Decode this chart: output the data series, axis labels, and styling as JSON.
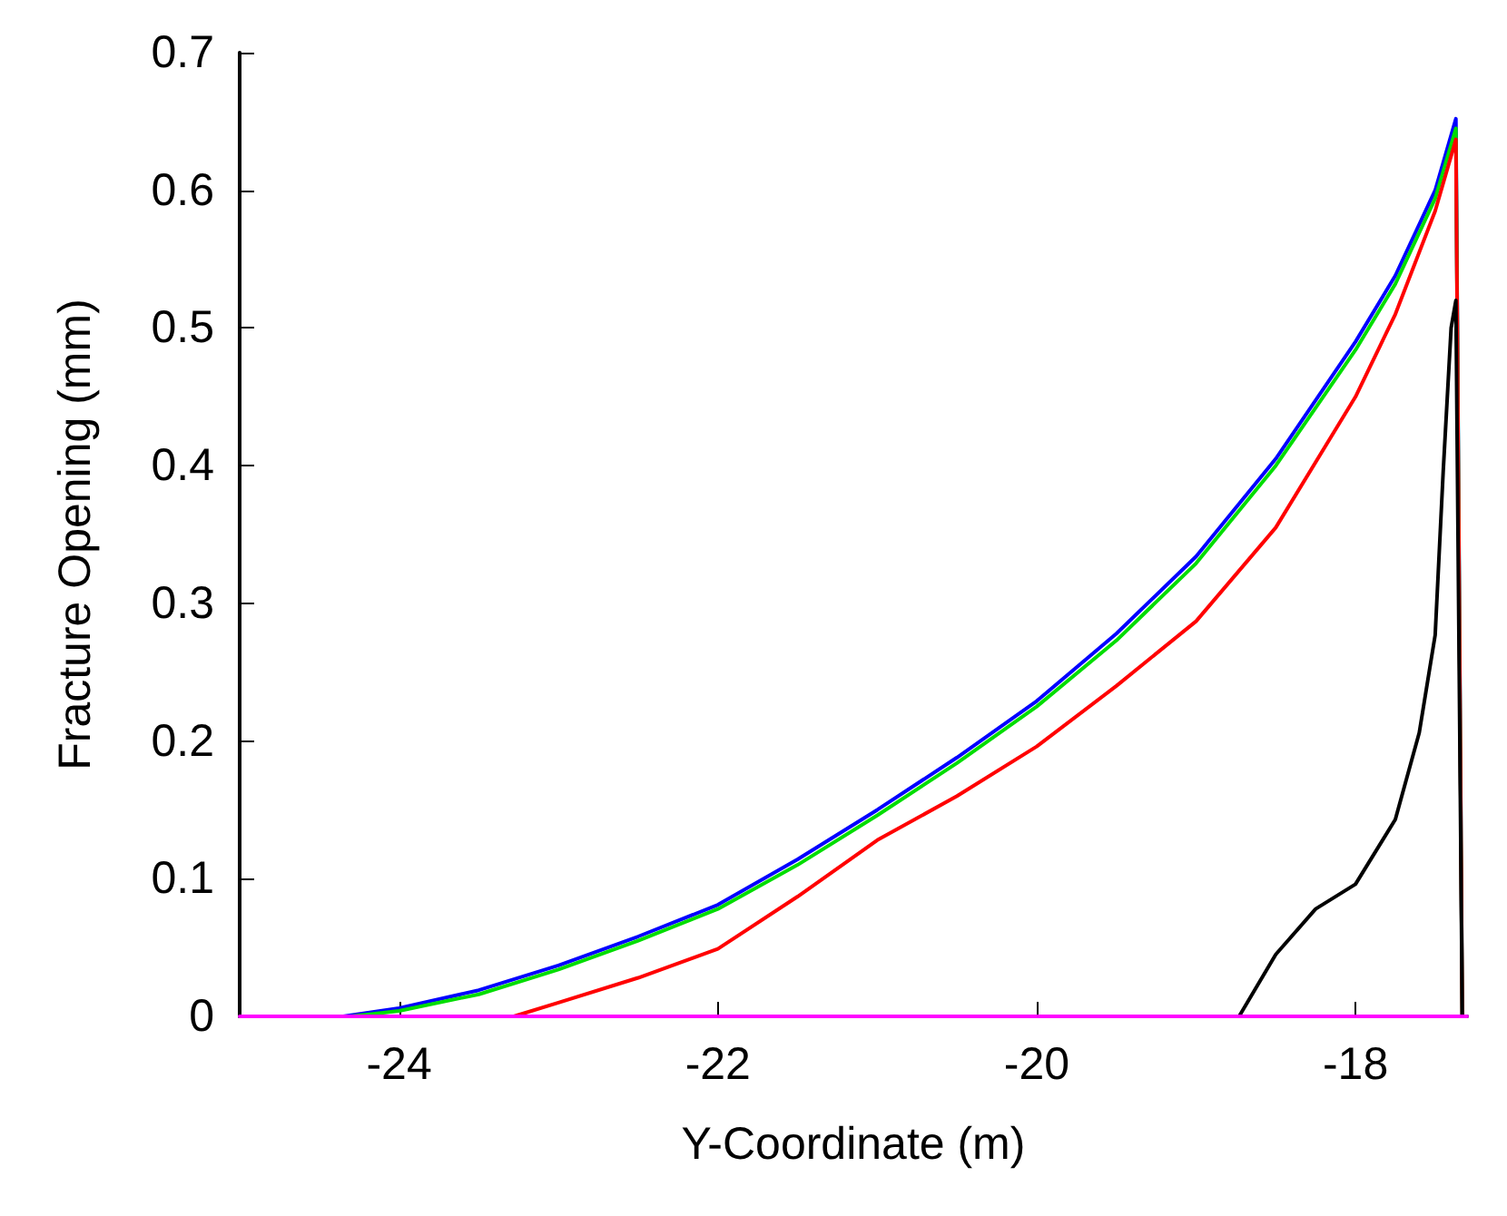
{
  "chart_data": {
    "type": "line",
    "xlabel": "Y-Coordinate (m)",
    "ylabel": "Fracture Opening (mm)",
    "xlim": [
      -25,
      -17.3
    ],
    "xticks": [
      -24,
      -22,
      -20,
      -18
    ],
    "ylim": [
      0,
      0.7
    ],
    "yticks": [
      0,
      0.1,
      0.2,
      0.3,
      0.4,
      0.5,
      0.6,
      0.7
    ],
    "grid": false,
    "marker": "none",
    "line_style": "solid",
    "series": [
      {
        "color": "#0000ff",
        "x": [
          -24.35,
          -24,
          -23.5,
          -23,
          -22.5,
          -22,
          -21.5,
          -21,
          -20.5,
          -20,
          -19.5,
          -19,
          -18.5,
          -18,
          -17.75,
          -17.5,
          -17.37,
          -17.33
        ],
        "values": [
          0,
          0.006,
          0.019,
          0.037,
          0.058,
          0.081,
          0.114,
          0.15,
          0.188,
          0.229,
          0.278,
          0.334,
          0.405,
          0.49,
          0.538,
          0.6,
          0.652,
          0
        ]
      },
      {
        "color": "#00dd00",
        "x": [
          -24.3,
          -24,
          -23.5,
          -23,
          -22.5,
          -22,
          -21.5,
          -21,
          -20.5,
          -20,
          -19.5,
          -19,
          -18.5,
          -18,
          -17.75,
          -17.5,
          -17.37,
          -17.33
        ],
        "values": [
          0,
          0.004,
          0.016,
          0.034,
          0.055,
          0.078,
          0.11,
          0.146,
          0.184,
          0.225,
          0.273,
          0.329,
          0.4,
          0.484,
          0.532,
          0.594,
          0.645,
          0
        ]
      },
      {
        "color": "#ff0000",
        "x": [
          -23.28,
          -23,
          -22.5,
          -22,
          -21.5,
          -21,
          -20.5,
          -20,
          -19.5,
          -19,
          -18.5,
          -18,
          -17.75,
          -17.5,
          -17.37,
          -17.33
        ],
        "values": [
          0,
          0.01,
          0.028,
          0.049,
          0.087,
          0.128,
          0.16,
          0.196,
          0.24,
          0.287,
          0.355,
          0.45,
          0.51,
          0.585,
          0.637,
          0
        ]
      },
      {
        "color": "#000000",
        "x": [
          -18.73,
          -18.5,
          -18.25,
          -18,
          -17.75,
          -17.6,
          -17.5,
          -17.45,
          -17.4,
          -17.37,
          -17.33
        ],
        "values": [
          0,
          0.045,
          0.078,
          0.096,
          0.143,
          0.206,
          0.277,
          0.395,
          0.5,
          0.52,
          0
        ]
      },
      {
        "color": "#ff00ff",
        "x": [
          -25,
          -17.3
        ],
        "values": [
          0,
          0
        ]
      }
    ]
  }
}
